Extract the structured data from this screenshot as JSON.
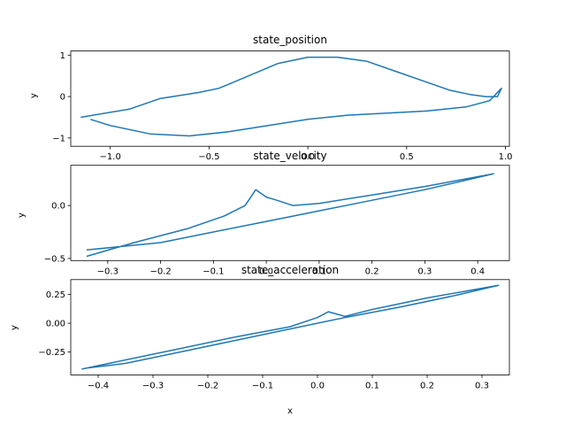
{
  "figure": {
    "background": "#ffffff",
    "line_color": "#1f77b4"
  },
  "chart_data": [
    {
      "type": "line",
      "title": "state_position",
      "xlabel": "",
      "ylabel": "y",
      "xlim": [
        -1.2,
        1.02
      ],
      "ylim": [
        -1.2,
        1.1
      ],
      "xticks": [
        "−1.0",
        "−0.5",
        "0.0",
        "0.5",
        "1.0"
      ],
      "xtick_values": [
        -1.0,
        -0.5,
        0.0,
        0.5,
        1.0
      ],
      "yticks": [
        "−1",
        "0",
        "1"
      ],
      "ytick_values": [
        -1,
        0,
        1
      ],
      "grid": false,
      "legend": "none",
      "series": [
        {
          "color": "#1f77b4",
          "x": [
            -1.15,
            -0.9,
            -0.75,
            -0.55,
            -0.45,
            -0.3,
            -0.15,
            0.0,
            0.15,
            0.3,
            0.45,
            0.6,
            0.72,
            0.82,
            0.9,
            0.96,
            0.98,
            0.92,
            0.8,
            0.6,
            0.4,
            0.2,
            0.0,
            -0.2,
            -0.4,
            -0.6,
            -0.8,
            -1.0,
            -1.1
          ],
          "y": [
            -0.5,
            -0.3,
            -0.05,
            0.1,
            0.2,
            0.5,
            0.8,
            0.95,
            0.95,
            0.85,
            0.6,
            0.35,
            0.15,
            0.05,
            0.0,
            0.0,
            0.2,
            -0.1,
            -0.25,
            -0.35,
            -0.4,
            -0.45,
            -0.55,
            -0.7,
            -0.85,
            -0.95,
            -0.9,
            -0.7,
            -0.55
          ]
        }
      ]
    },
    {
      "type": "line",
      "title": "state_velocity",
      "xlabel": "",
      "ylabel": "y",
      "xlim": [
        -0.37,
        0.46
      ],
      "ylim": [
        -0.52,
        0.38
      ],
      "xticks": [
        "−0.3",
        "−0.2",
        "−0.1",
        "0.0",
        "0.1",
        "0.2",
        "0.3",
        "0.4"
      ],
      "xtick_values": [
        -0.3,
        -0.2,
        -0.1,
        0.0,
        0.1,
        0.2,
        0.3,
        0.4
      ],
      "yticks": [
        "−0.5",
        "0.0"
      ],
      "ytick_values": [
        -0.5,
        0.0
      ],
      "grid": false,
      "legend": "none",
      "series": [
        {
          "color": "#1f77b4",
          "x": [
            -0.34,
            -0.25,
            -0.15,
            -0.08,
            -0.04,
            -0.02,
            0.0,
            0.02,
            0.05,
            0.1,
            0.2,
            0.3,
            0.43,
            0.3,
            0.2,
            0.1,
            0.0,
            -0.1,
            -0.2,
            -0.34
          ],
          "y": [
            -0.48,
            -0.35,
            -0.22,
            -0.1,
            0.0,
            0.15,
            0.08,
            0.05,
            0.0,
            0.02,
            0.1,
            0.18,
            0.3,
            0.15,
            0.05,
            -0.05,
            -0.15,
            -0.25,
            -0.35,
            -0.42
          ]
        }
      ]
    },
    {
      "type": "line",
      "title": "state_acceleration",
      "xlabel": "x",
      "ylabel": "y",
      "xlim": [
        -0.45,
        0.35
      ],
      "ylim": [
        -0.45,
        0.38
      ],
      "xticks": [
        "−0.4",
        "−0.3",
        "−0.2",
        "−0.1",
        "0.0",
        "0.1",
        "0.2",
        "0.3"
      ],
      "xtick_values": [
        -0.4,
        -0.3,
        -0.2,
        -0.1,
        0.0,
        0.1,
        0.2,
        0.3
      ],
      "yticks": [
        "−0.25",
        "0.00",
        "0.25"
      ],
      "ytick_values": [
        -0.25,
        0.0,
        0.25
      ],
      "grid": false,
      "legend": "none",
      "series": [
        {
          "color": "#1f77b4",
          "x": [
            -0.43,
            -0.35,
            -0.25,
            -0.15,
            -0.05,
            0.0,
            0.02,
            0.05,
            0.1,
            0.2,
            0.33,
            0.25,
            0.15,
            0.05,
            -0.05,
            -0.15,
            -0.25,
            -0.35,
            -0.42
          ],
          "y": [
            -0.4,
            -0.32,
            -0.22,
            -0.12,
            -0.03,
            0.05,
            0.1,
            0.06,
            0.12,
            0.22,
            0.33,
            0.24,
            0.14,
            0.05,
            -0.05,
            -0.15,
            -0.25,
            -0.35,
            -0.39
          ]
        }
      ]
    }
  ]
}
